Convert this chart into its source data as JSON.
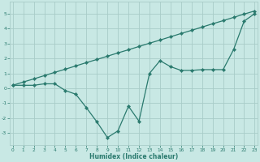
{
  "xlabel": "Humidex (Indice chaleur)",
  "line1_x": [
    0,
    1,
    2,
    3,
    4,
    5,
    6,
    7,
    8,
    9,
    10,
    11,
    12,
    13,
    14,
    15,
    16,
    17,
    18,
    19,
    20,
    21,
    22,
    23
  ],
  "line1_y": [
    0.2,
    0.42,
    0.63,
    0.85,
    1.07,
    1.28,
    1.5,
    1.72,
    1.93,
    2.15,
    2.37,
    2.58,
    2.8,
    3.02,
    3.23,
    3.45,
    3.67,
    3.88,
    4.1,
    4.32,
    4.53,
    4.75,
    4.97,
    5.18
  ],
  "line2_x": [
    0,
    1,
    2,
    3,
    4,
    5,
    6,
    7,
    8,
    9,
    10,
    11,
    12,
    13,
    14,
    15,
    16,
    17,
    18,
    19,
    20,
    21,
    22,
    23
  ],
  "line2_y": [
    0.2,
    0.2,
    0.2,
    0.3,
    0.3,
    -0.15,
    -0.4,
    -1.3,
    -2.25,
    -3.3,
    -2.85,
    -1.2,
    -2.2,
    1.0,
    1.85,
    1.45,
    1.2,
    1.2,
    1.25,
    1.25,
    1.25,
    2.6,
    4.5,
    5.0
  ],
  "line_color": "#2a7a6e",
  "bg_color": "#c8e8e4",
  "grid_color": "#a8ccc8",
  "ylim": [
    -3.8,
    5.8
  ],
  "xlim": [
    -0.3,
    23.3
  ],
  "yticks": [
    -3,
    -2,
    -1,
    0,
    1,
    2,
    3,
    4,
    5
  ],
  "xticks": [
    0,
    1,
    2,
    3,
    4,
    5,
    6,
    7,
    8,
    9,
    10,
    11,
    12,
    13,
    14,
    15,
    16,
    17,
    18,
    19,
    20,
    21,
    22,
    23
  ],
  "marker": "D",
  "markersize": 2.2,
  "linewidth": 0.9
}
